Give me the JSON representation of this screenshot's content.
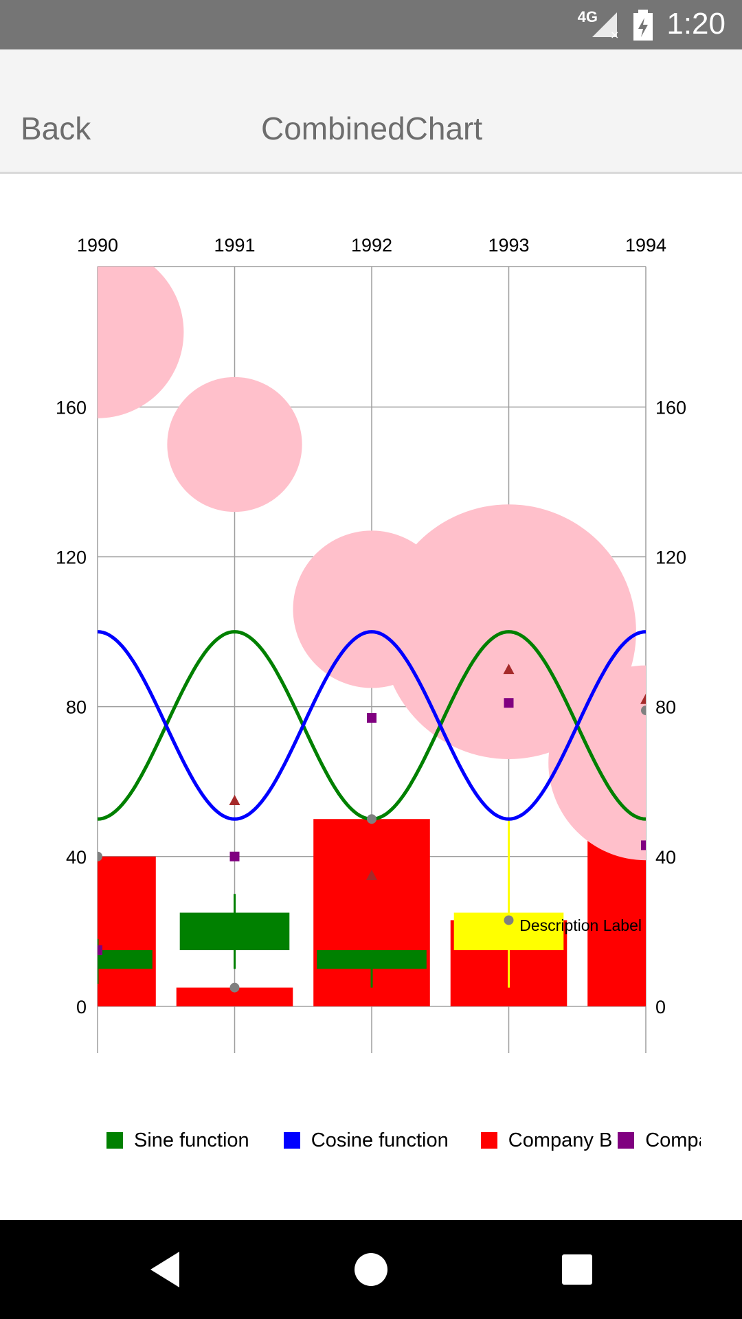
{
  "status_bar": {
    "time": "1:20",
    "network": "4G"
  },
  "header": {
    "back_label": "Back",
    "title": "CombinedChart"
  },
  "chart_data": {
    "type": "combined",
    "categories": [
      "1990",
      "1991",
      "1992",
      "1993",
      "1994"
    ],
    "x": [
      0,
      1,
      2,
      3,
      4
    ],
    "ylim": [
      -12.5,
      197.5
    ],
    "yticks": [
      0,
      40,
      80,
      120,
      160
    ],
    "ytick_labels": [
      "0",
      "40",
      "80",
      "120",
      "160"
    ],
    "grid": true,
    "description": "Description Label",
    "line_series": [
      {
        "name": "Sine function",
        "color": "#008000",
        "amplitude": 25,
        "offset": 75,
        "phase": "sine"
      },
      {
        "name": "Cosine function",
        "color": "#0000ff",
        "amplitude": 25,
        "offset": 75,
        "phase": "cosine"
      }
    ],
    "bar_series": [
      {
        "name": "Company B",
        "color": "#ff0000",
        "x": [
          0,
          1,
          2,
          3,
          4
        ],
        "values": [
          40,
          5,
          50,
          23,
          79
        ]
      }
    ],
    "scatter_series": [
      {
        "name": "Company",
        "color": "#800080",
        "marker": "square",
        "x": [
          0,
          1,
          2,
          3,
          4
        ],
        "values": [
          15,
          40,
          77,
          81,
          43
        ]
      },
      {
        "color": "#a52a2a",
        "marker": "triangle",
        "x": [
          1,
          2,
          3,
          4
        ],
        "values": [
          55,
          35,
          90,
          82
        ]
      },
      {
        "color": "#808080",
        "marker": "circle",
        "x": [
          0,
          1,
          2,
          3,
          4
        ],
        "values": [
          40,
          5,
          50,
          23,
          79
        ]
      }
    ],
    "candle_series": [
      {
        "x": 0,
        "open": 15,
        "close": 10,
        "high": 18,
        "low": 6,
        "color": "#008000"
      },
      {
        "x": 1,
        "open": 25,
        "close": 15,
        "high": 30,
        "low": 10,
        "color": "#008000"
      },
      {
        "x": 2,
        "open": 15,
        "close": 10,
        "high": 15,
        "low": 5,
        "color": "#008000"
      },
      {
        "x": 3,
        "open": 25,
        "close": 15,
        "high": 50,
        "low": 5,
        "color": "#ffff00"
      }
    ],
    "bubble_series": [
      {
        "color": "#ffc0cb",
        "x": [
          0,
          1,
          2,
          3,
          4
        ],
        "values": [
          180,
          150,
          106,
          100,
          65
        ],
        "sizes": [
          23,
          18,
          21,
          34,
          26
        ]
      }
    ],
    "legend": [
      {
        "label": "Sine function",
        "color": "#008000"
      },
      {
        "label": "Cosine function",
        "color": "#0000ff"
      },
      {
        "label": "Company B",
        "color": "#ff0000"
      },
      {
        "label": "Company",
        "color": "#800080"
      }
    ],
    "legend_position": "bottom-left"
  },
  "icons": {
    "back": "triangle-back-icon",
    "home": "circle-home-icon",
    "recents": "square-recents-icon"
  }
}
